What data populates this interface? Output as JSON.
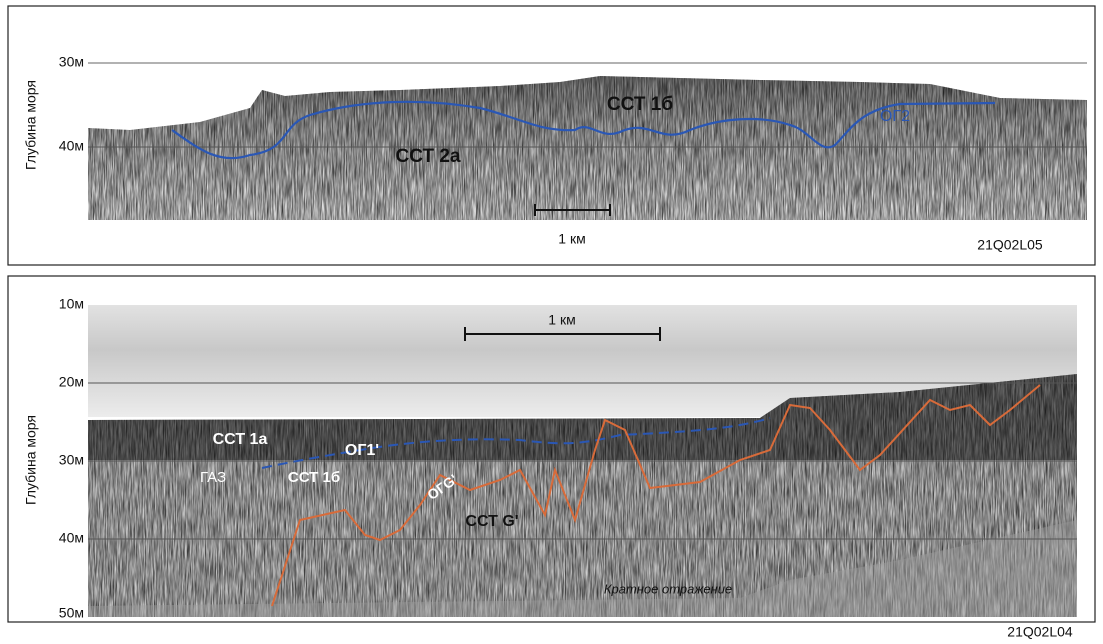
{
  "panels": [
    {
      "id": "21Q02L05",
      "y_axis_label": "Глубина моря",
      "depth_labels": [
        "30м",
        "40м"
      ],
      "scale_bar": "1 км",
      "annotations": [
        "ССТ 1б",
        "ССТ 2а",
        "ОГ2"
      ]
    },
    {
      "id": "21Q02L04",
      "y_axis_label": "Глубина моря",
      "depth_labels": [
        "10м",
        "20м",
        "30м",
        "40м",
        "50м"
      ],
      "scale_bar": "1 км",
      "annotations": [
        "ССТ 1а",
        "ОГ1'",
        "ГАЗ",
        "ССТ 1б",
        "ОГG'",
        "ССТ G'",
        "Кратное отражение"
      ]
    }
  ]
}
